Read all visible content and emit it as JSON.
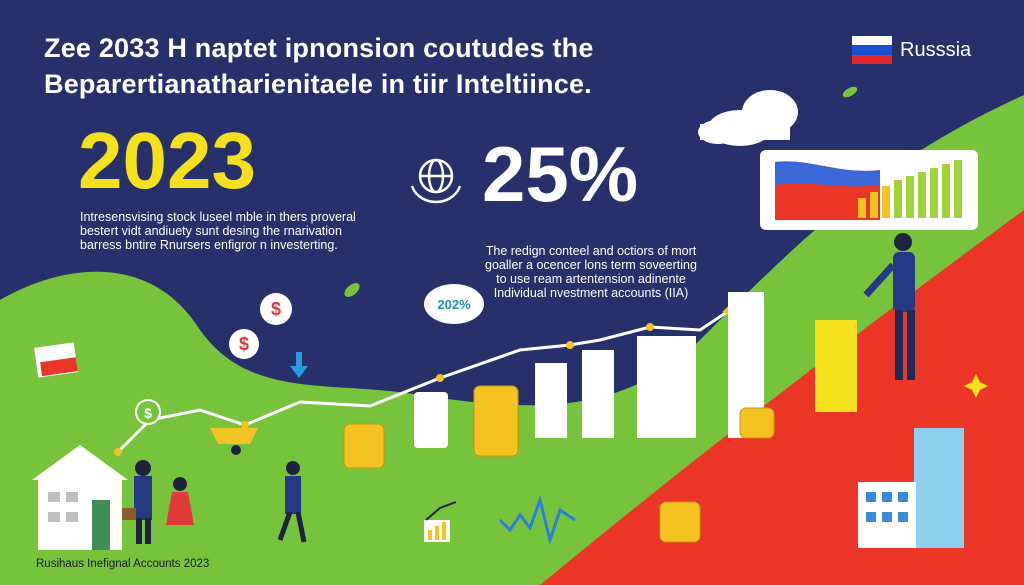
{
  "header": {
    "title_line1": "Zee 2033 H naptet ipnonsion coutudes the",
    "title_line2": "Beparertianatharienitaele in tiir Inteltiince."
  },
  "country": {
    "label": "Russsia",
    "flag_colors": [
      "#ffffff",
      "#1a4fd0",
      "#e0282a"
    ]
  },
  "hero": {
    "year": "2023",
    "percent": "25%",
    "left_text": [
      "Intresensvising stock luseel mble in thers proveral",
      "bestert vidt andiuety sunt desing the rnarivation",
      "barress bntire Rnursers enfigror n investerting."
    ],
    "mid_text": [
      "The redign conteel and octiors of mort",
      "goaller a ocencer lons term soveerting",
      "to use ream artentension adinente",
      "Individual nvestment accounts (IIA)"
    ],
    "badge": "202%"
  },
  "footer": {
    "text": "Rusihaus Inefignal Accounts 2023"
  },
  "colors": {
    "navy": "#27306b",
    "green": "#77c43c",
    "red": "#ea3527",
    "yellow": "#f5e11b",
    "coin": "#f3c321"
  },
  "icons": [
    "globe-hands-icon",
    "cloud-icon",
    "dollar-coin-icon",
    "leaf-icon",
    "down-arrow-icon",
    "sparkle-icon",
    "house-icon",
    "person-icon",
    "building-icon",
    "chart-window-icon"
  ]
}
